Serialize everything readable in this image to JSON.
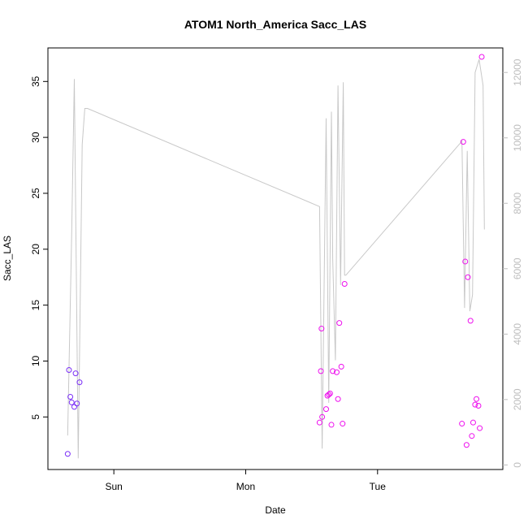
{
  "chart_data": {
    "type": "scatter",
    "title": "ATOM1 North_America Sacc_LAS",
    "xlabel": "Date",
    "ylabel": "Sacc_LAS",
    "x_ticks": [
      {
        "label": "Sun",
        "day": 1.0
      },
      {
        "label": "Mon",
        "day": 2.0
      },
      {
        "label": "Tue",
        "day": 3.0
      }
    ],
    "xlim_days": [
      0.5,
      3.95
    ],
    "ylim": [
      0.3,
      38.0
    ],
    "y_ticks": [
      5,
      10,
      15,
      20,
      25,
      30,
      35
    ],
    "y2lim": [
      -140,
      12750
    ],
    "y2_ticks": [
      0,
      2000,
      4000,
      6000,
      8000,
      10000,
      12000
    ],
    "colors": {
      "line": "#c8c8c8",
      "right_axis": "#bdbdbd",
      "purple": "#7b2ff7",
      "magenta": "#ee10ee"
    },
    "line_series": {
      "x": [
        0.65,
        0.68,
        0.7,
        0.73,
        0.76,
        0.78,
        0.8,
        2.56,
        2.58,
        2.61,
        2.63,
        2.65,
        2.66,
        2.68,
        2.7,
        2.72,
        2.74,
        2.75,
        2.76,
        3.64,
        3.66,
        3.68,
        3.7,
        3.72,
        3.74,
        3.77,
        3.8,
        3.81
      ],
      "y": [
        900,
        7000,
        11800,
        200,
        9800,
        10900,
        10900,
        7900,
        500,
        10600,
        1900,
        10800,
        6300,
        3200,
        11600,
        5500,
        11700,
        5800,
        5800,
        9900,
        4800,
        9600,
        4700,
        5200,
        12000,
        12400,
        11600,
        7200
      ]
    },
    "points": [
      {
        "x": 0.65,
        "y": 1.7,
        "color": "purple"
      },
      {
        "x": 0.66,
        "y": 9.2,
        "color": "purple"
      },
      {
        "x": 0.67,
        "y": 6.8,
        "color": "purple"
      },
      {
        "x": 0.68,
        "y": 6.3,
        "color": "purple"
      },
      {
        "x": 0.7,
        "y": 5.9,
        "color": "purple"
      },
      {
        "x": 0.71,
        "y": 8.9,
        "color": "purple"
      },
      {
        "x": 0.72,
        "y": 6.2,
        "color": "purple"
      },
      {
        "x": 0.74,
        "y": 8.1,
        "color": "purple"
      },
      {
        "x": 2.56,
        "y": 4.5,
        "color": "magenta"
      },
      {
        "x": 2.57,
        "y": 9.1,
        "color": "magenta"
      },
      {
        "x": 2.575,
        "y": 12.9,
        "color": "magenta"
      },
      {
        "x": 2.58,
        "y": 5.0,
        "color": "magenta"
      },
      {
        "x": 2.61,
        "y": 5.7,
        "color": "magenta"
      },
      {
        "x": 2.62,
        "y": 6.9,
        "color": "magenta"
      },
      {
        "x": 2.63,
        "y": 7.0,
        "color": "magenta"
      },
      {
        "x": 2.64,
        "y": 7.1,
        "color": "magenta"
      },
      {
        "x": 2.65,
        "y": 4.3,
        "color": "magenta"
      },
      {
        "x": 2.66,
        "y": 9.1,
        "color": "magenta"
      },
      {
        "x": 2.69,
        "y": 9.0,
        "color": "magenta"
      },
      {
        "x": 2.7,
        "y": 6.6,
        "color": "magenta"
      },
      {
        "x": 2.71,
        "y": 13.4,
        "color": "magenta"
      },
      {
        "x": 2.725,
        "y": 9.5,
        "color": "magenta"
      },
      {
        "x": 2.735,
        "y": 4.4,
        "color": "magenta"
      },
      {
        "x": 2.75,
        "y": 16.9,
        "color": "magenta"
      },
      {
        "x": 3.64,
        "y": 4.4,
        "color": "magenta"
      },
      {
        "x": 3.65,
        "y": 29.6,
        "color": "magenta"
      },
      {
        "x": 3.665,
        "y": 18.9,
        "color": "magenta"
      },
      {
        "x": 3.675,
        "y": 2.5,
        "color": "magenta"
      },
      {
        "x": 3.685,
        "y": 17.5,
        "color": "magenta"
      },
      {
        "x": 3.705,
        "y": 13.6,
        "color": "magenta"
      },
      {
        "x": 3.715,
        "y": 3.3,
        "color": "magenta"
      },
      {
        "x": 3.725,
        "y": 4.5,
        "color": "magenta"
      },
      {
        "x": 3.74,
        "y": 6.1,
        "color": "magenta"
      },
      {
        "x": 3.75,
        "y": 6.6,
        "color": "magenta"
      },
      {
        "x": 3.765,
        "y": 6.0,
        "color": "magenta"
      },
      {
        "x": 3.775,
        "y": 4.0,
        "color": "magenta"
      },
      {
        "x": 3.79,
        "y": 37.2,
        "color": "magenta"
      }
    ]
  }
}
